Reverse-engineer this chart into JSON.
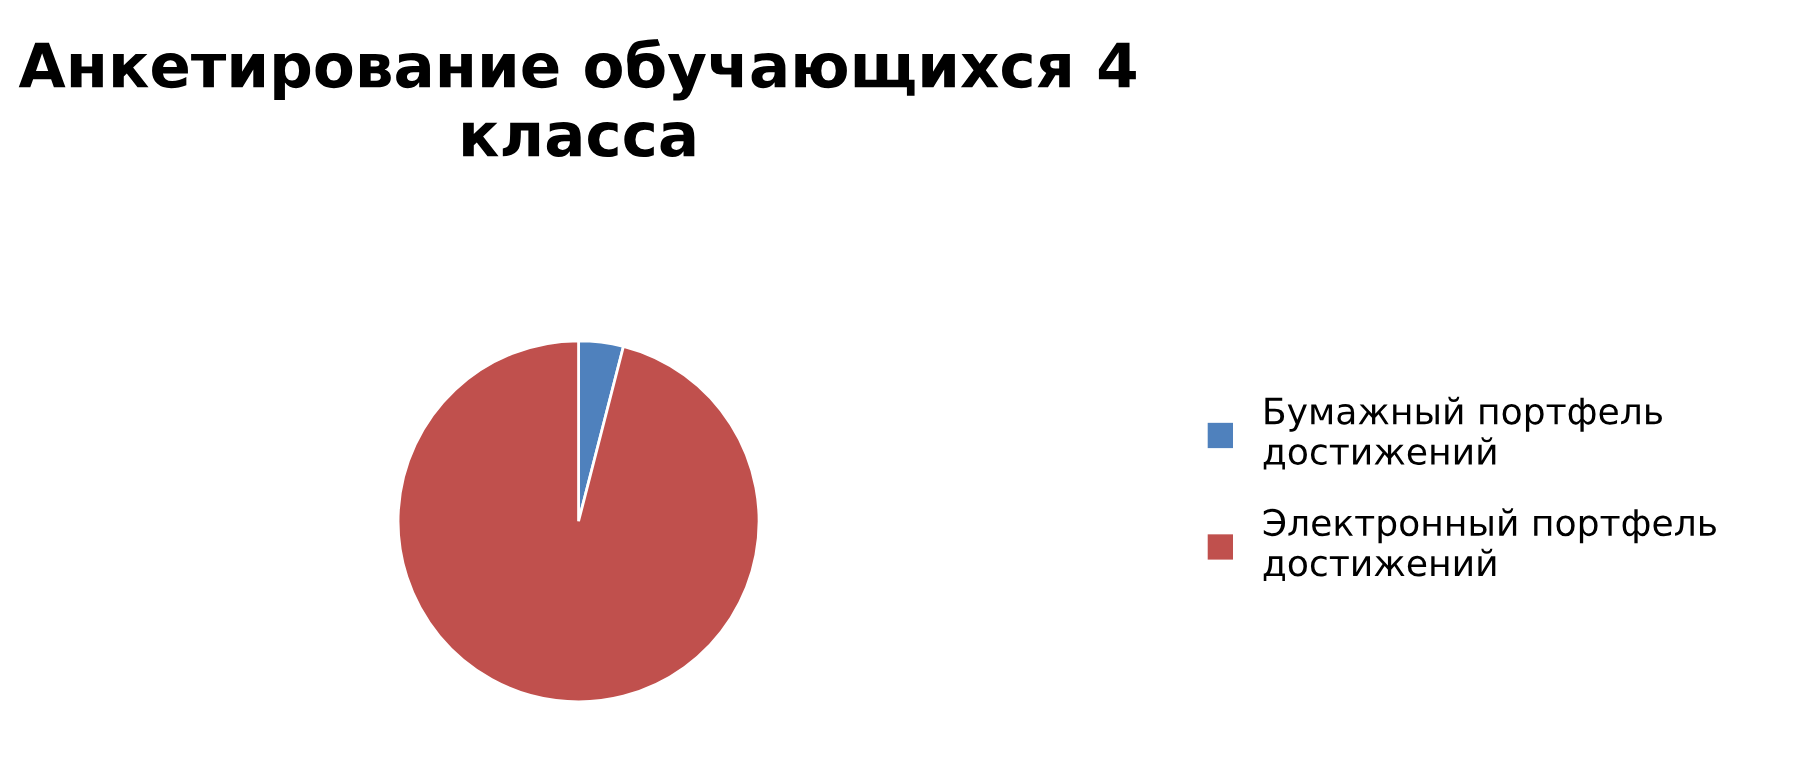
{
  "chart_data": {
    "type": "pie",
    "title": "Анкетирование обучающихся 4 класса",
    "categories": [
      "Бумажный портфель достижений",
      "Электронный портфель достижений"
    ],
    "values": [
      4,
      96
    ],
    "colors": [
      "#4f81bd",
      "#c0504d"
    ],
    "legend": "right"
  }
}
